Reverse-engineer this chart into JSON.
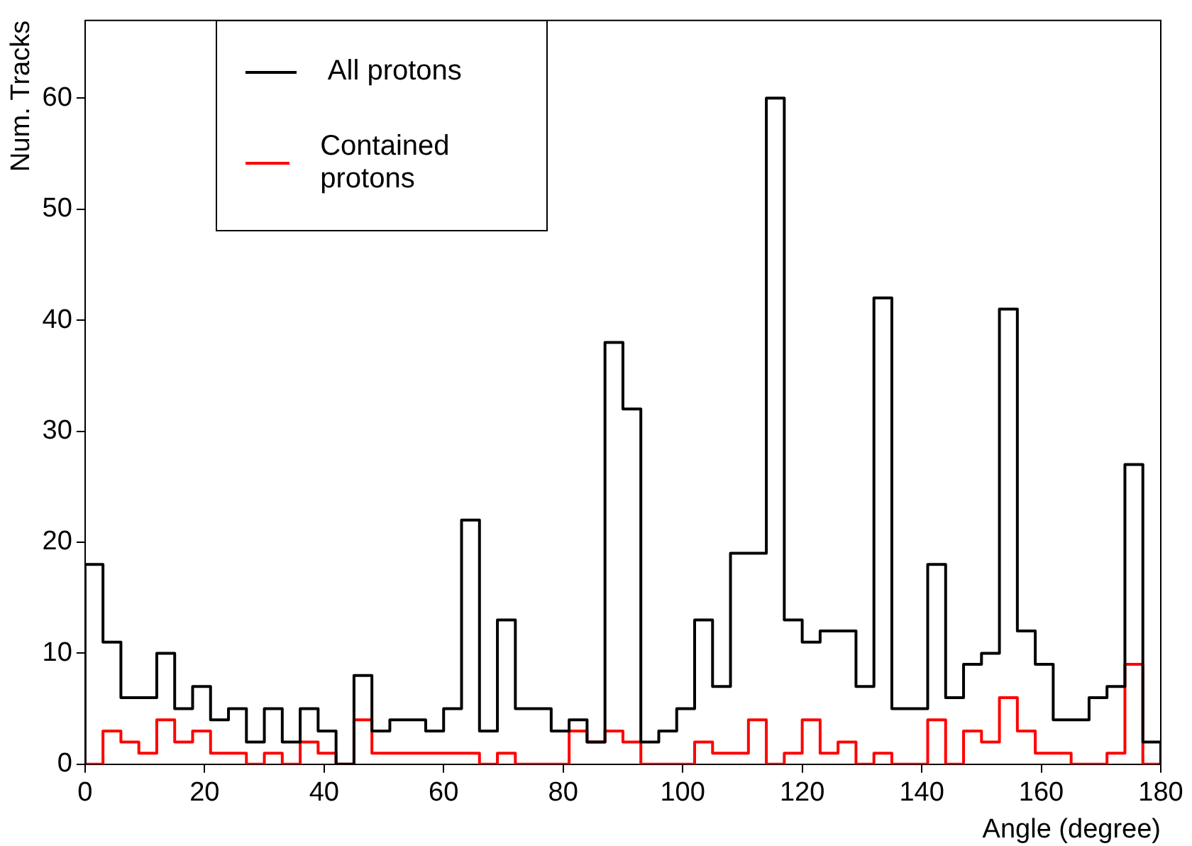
{
  "chart_data": {
    "type": "histogram",
    "xlabel": "Angle (degree)",
    "ylabel": "Num. Tracks",
    "bins": [
      0,
      3,
      6,
      9,
      12,
      15,
      18,
      21,
      24,
      27,
      30,
      33,
      36,
      39,
      42,
      45,
      48,
      51,
      54,
      57,
      60,
      63,
      66,
      69,
      72,
      75,
      78,
      81,
      84,
      87,
      90,
      93,
      96,
      99,
      102,
      105,
      108,
      111,
      114,
      117,
      120,
      123,
      126,
      129,
      132,
      135,
      138,
      141,
      144,
      147,
      150,
      153,
      156,
      159,
      162,
      165,
      168,
      171,
      174,
      177,
      180
    ],
    "series": [
      {
        "name": "All protons",
        "color": "#000000",
        "values": [
          18,
          11,
          6,
          6,
          10,
          5,
          7,
          4,
          5,
          2,
          5,
          2,
          5,
          3,
          0,
          8,
          3,
          4,
          4,
          3,
          5,
          22,
          3,
          13,
          5,
          5,
          3,
          4,
          2,
          38,
          32,
          2,
          3,
          5,
          13,
          7,
          19,
          19,
          60,
          13,
          11,
          12,
          12,
          7,
          42,
          5,
          5,
          18,
          6,
          9,
          10,
          41,
          12,
          9,
          4,
          4,
          6,
          7,
          27,
          2
        ]
      },
      {
        "name": "Contained protons",
        "color": "#ff0000",
        "values": [
          0,
          3,
          2,
          1,
          4,
          2,
          3,
          1,
          1,
          0,
          1,
          0,
          2,
          1,
          0,
          4,
          1,
          1,
          1,
          1,
          1,
          1,
          0,
          1,
          0,
          0,
          0,
          3,
          2,
          3,
          2,
          0,
          0,
          0,
          2,
          1,
          1,
          4,
          0,
          1,
          4,
          1,
          2,
          0,
          1,
          0,
          0,
          4,
          0,
          3,
          2,
          6,
          3,
          1,
          1,
          0,
          0,
          1,
          9,
          0
        ]
      }
    ],
    "xlim": [
      0,
      180
    ],
    "xticks": [
      0,
      20,
      40,
      60,
      80,
      100,
      120,
      140,
      160,
      180
    ],
    "ylim": [
      0,
      67
    ],
    "yticks": [
      0,
      10,
      20,
      30,
      40,
      50,
      60
    ],
    "grid": false,
    "legend": "top left"
  }
}
